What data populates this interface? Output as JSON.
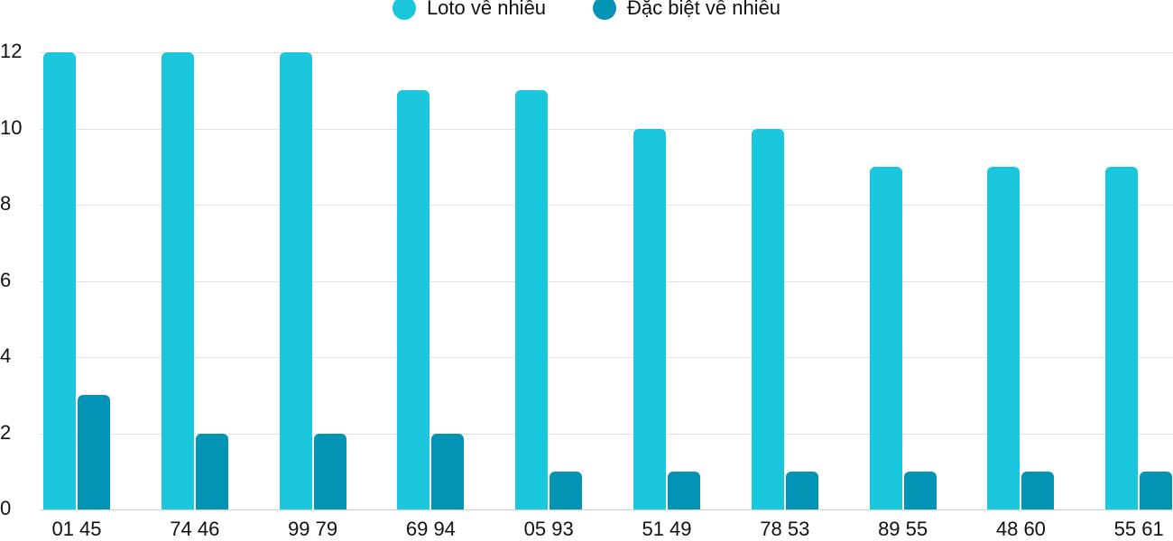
{
  "legend": [
    {
      "label": "Loto về nhiều",
      "color": "#1bc7dc"
    },
    {
      "label": "Đặc biệt về nhiều",
      "color": "#0393b5"
    }
  ],
  "chart_data": {
    "type": "bar",
    "title": "",
    "xlabel": "",
    "ylabel": "",
    "ylim": [
      0,
      12
    ],
    "yticks": [
      0,
      2,
      4,
      6,
      8,
      10,
      12
    ],
    "grid": true,
    "legend_position": "top",
    "categories": [
      "01 45",
      "74 46",
      "99 79",
      "69 94",
      "05 93",
      "51 49",
      "78 53",
      "89 55",
      "48 60",
      "55 61"
    ],
    "series": [
      {
        "name": "Loto về nhiều",
        "color": "#1bc7dc",
        "values": [
          12,
          12,
          12,
          11,
          11,
          10,
          10,
          9,
          9,
          9
        ]
      },
      {
        "name": "Đặc biệt về nhiều",
        "color": "#0393b5",
        "values": [
          3,
          2,
          2,
          2,
          1,
          1,
          1,
          1,
          1,
          1
        ]
      }
    ]
  }
}
